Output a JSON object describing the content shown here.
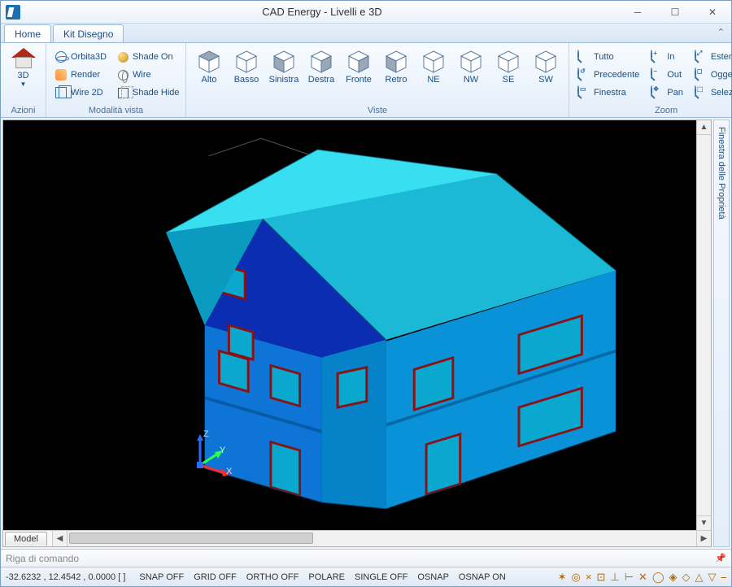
{
  "window": {
    "title": "CAD Energy - Livelli e 3D"
  },
  "tabs": {
    "home": "Home",
    "kit": "Kit Disegno"
  },
  "ribbon": {
    "azioni": {
      "label": "Azioni",
      "button": "3D"
    },
    "modalita": {
      "label": "Modalità vista",
      "orbita": "Orbita3D",
      "shadeon": "Shade On",
      "render": "Render",
      "wire": "Wire",
      "wire2d": "Wire 2D",
      "shadehide": "Shade Hide"
    },
    "viste": {
      "label": "Viste",
      "alto": "Alto",
      "basso": "Basso",
      "sinistra": "Sinistra",
      "destra": "Destra",
      "fronte": "Fronte",
      "retro": "Retro",
      "ne": "NE",
      "nw": "NW",
      "se": "SE",
      "sw": "SW"
    },
    "zoom": {
      "label": "Zoom",
      "tutto": "Tutto",
      "in": "In",
      "estensione": "Estensione",
      "precedente": "Precedente",
      "out": "Out",
      "oggetto": "Oggetto",
      "finestra": "Finestra",
      "pan": "Pan",
      "selezione": "Selezione"
    }
  },
  "proppanel": {
    "title": "Finestra delle Proprietà"
  },
  "modeltab": "Model",
  "cmdline": {
    "placeholder": "Riga di comando"
  },
  "statusbar": {
    "coords": "-32.6232 , 12.4542 , 0.0000 [  ]",
    "snap": "SNAP OFF",
    "grid": "GRID OFF",
    "ortho": "ORTHO OFF",
    "polare": "POLARE",
    "single": "SINGLE OFF",
    "osnap": "OSNAP",
    "osnapon": "OSNAP ON"
  },
  "gizmo": {
    "x": "X",
    "y": "Y",
    "z": "Z"
  },
  "colors": {
    "roof_top": "#38dff0",
    "roof_front": "#1bb9d5",
    "roof_side": "#0c9bc0",
    "wall_front": "#0e74d6",
    "wall_dark": "#0b2db2",
    "wall_side": "#0a92d9",
    "wall_side2": "#0682c8",
    "window_fill": "#0aa7cf",
    "window_frame": "#8a1212",
    "canvas_bg": "#000000"
  }
}
